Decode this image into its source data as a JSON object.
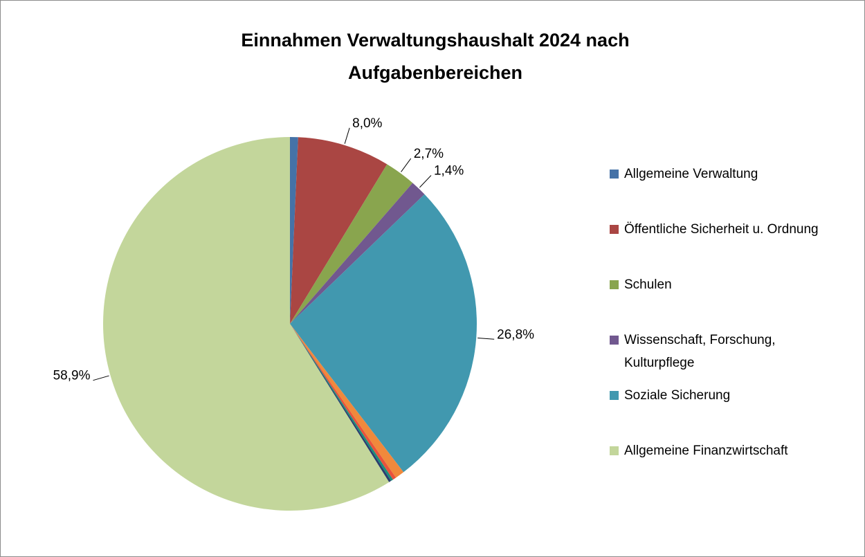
{
  "chart_data": {
    "type": "pie",
    "title": "Einnahmen Verwaltungshaushalt 2024 nach Aufgabenbereichen",
    "categories": [
      "Allgemeine Verwaltung",
      "Öffentliche Sicherheit u. Ordnung",
      "Schulen",
      "Wissenschaft, Forschung, Kulturpflege",
      "Soziale Sicherung",
      null,
      null,
      null,
      null,
      "Allgemeine Finanzwirtschaft"
    ],
    "values": [
      0.7,
      8.0,
      2.7,
      1.4,
      26.8,
      0.8,
      0.3,
      0.2,
      0.2,
      58.9
    ],
    "value_labels": [
      null,
      "8,0%",
      "2,7%",
      "1,4%",
      "26,8%",
      null,
      null,
      null,
      null,
      "58,9%"
    ],
    "colors": [
      "#4572a7",
      "#aa4643",
      "#89a54e",
      "#71588f",
      "#4198af",
      "#f0893c",
      "#e9533c",
      "#1a8e7b",
      "#2a3f6e",
      "#c3d69b"
    ],
    "legend": "right"
  }
}
